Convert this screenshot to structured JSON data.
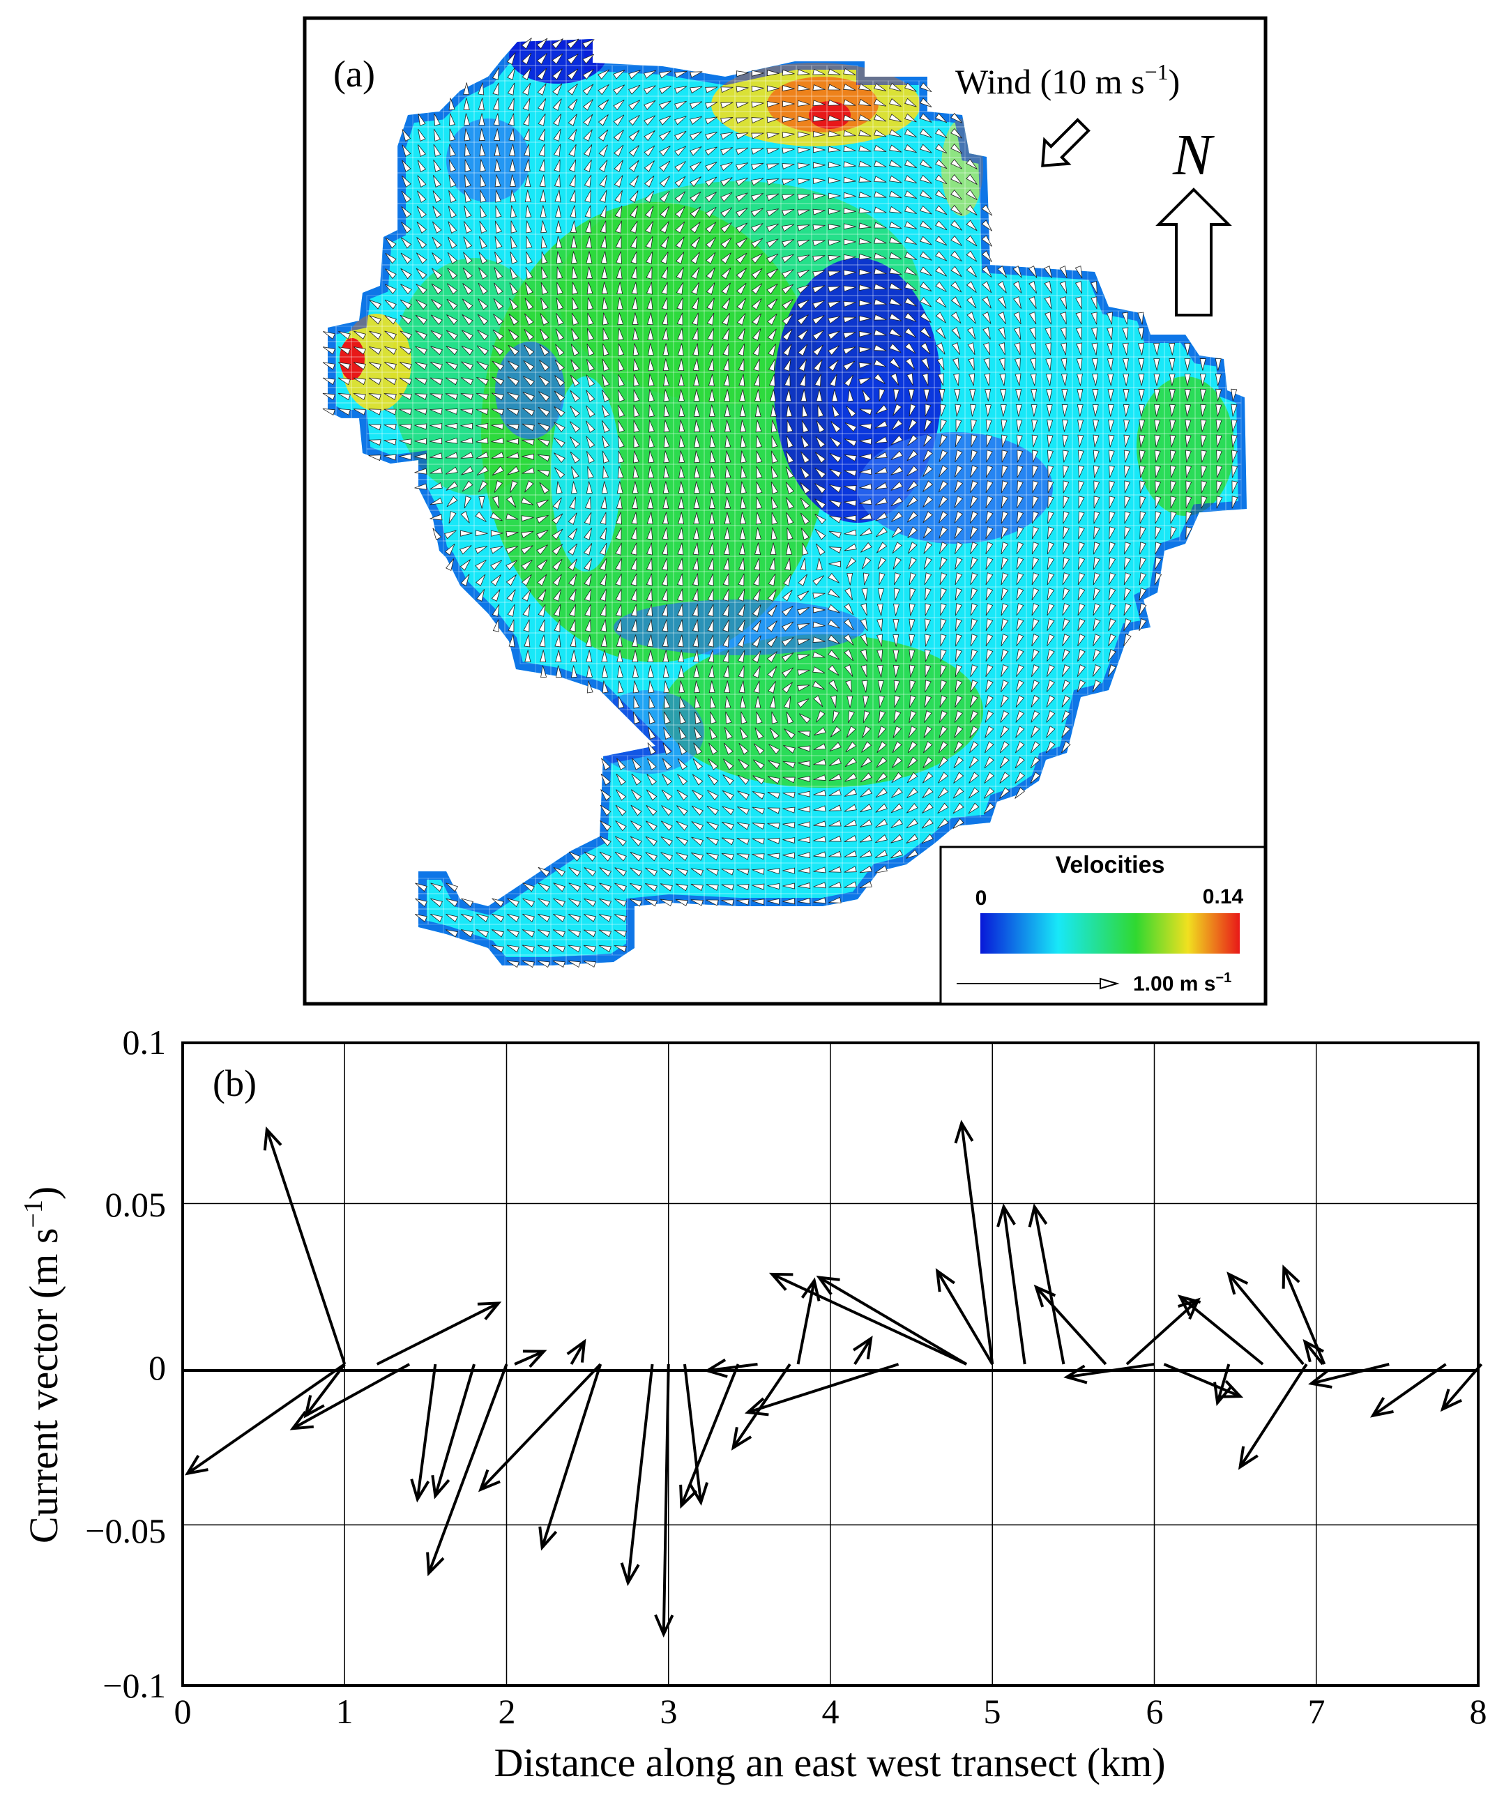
{
  "panel_a": {
    "label": "(a)",
    "wind_label": "Wind (10 m s",
    "wind_sup": "−1",
    "wind_close": ")",
    "north_label": "N",
    "legend": {
      "title": "Velocities",
      "min_label": "0",
      "max_label": "0.14",
      "scale_label": "1.00 m s",
      "scale_sup": "−1"
    },
    "colors": {
      "deep_blue": "#0818d8",
      "blue": "#2a6cf0",
      "cyan": "#18e8f8",
      "green": "#30d830",
      "yellow": "#f0e020",
      "orange": "#f07818",
      "red": "#e81818"
    }
  },
  "panel_b": {
    "label": "(b)",
    "ylabel": "Current vector (m s",
    "ylabel_sup": "−1",
    "ylabel_close": ")",
    "xlabel": "Distance along an east west transect (km)",
    "x_ticks": [
      "0",
      "1",
      "2",
      "3",
      "4",
      "5",
      "6",
      "7",
      "8"
    ],
    "y_ticks": [
      "0.1",
      "0.05",
      "0",
      "−0.05",
      "−0.1"
    ]
  },
  "chart_data": [
    {
      "type": "vector-field-map",
      "title": "(a)",
      "annotations": [
        "Wind (10 m s−1)",
        "N"
      ],
      "wind_direction": "from north-east (arrow pointing south-west)",
      "colorbar": {
        "label": "Velocities",
        "min": 0,
        "max": 0.14,
        "colors": [
          "#0818d8",
          "#18e8f8",
          "#30d830",
          "#f0e020",
          "#e81818"
        ]
      },
      "reference_vector": "1.00 m s−1"
    },
    {
      "type": "quiver",
      "title": "(b)",
      "xlabel": "Distance along an east west transect (km)",
      "ylabel": "Current vector (m s−1)",
      "xlim": [
        0,
        8
      ],
      "ylim": [
        -0.1,
        0.1
      ],
      "x_ticks": [
        0,
        1,
        2,
        3,
        4,
        5,
        6,
        7,
        8
      ],
      "y_ticks": [
        -0.1,
        -0.05,
        0,
        0.05,
        0.1
      ],
      "grid": true,
      "vectors": [
        {
          "x": 1.0,
          "u": -0.48,
          "v": 0.073
        },
        {
          "x": 1.0,
          "u": -0.24,
          "v": -0.016
        },
        {
          "x": 1.0,
          "u": -0.97,
          "v": -0.034
        },
        {
          "x": 1.4,
          "u": -0.72,
          "v": -0.02
        },
        {
          "x": 1.56,
          "u": -0.11,
          "v": -0.042
        },
        {
          "x": 1.2,
          "u": 0.75,
          "v": 0.019
        },
        {
          "x": 1.8,
          "u": -0.24,
          "v": -0.041
        },
        {
          "x": 2.0,
          "u": -0.48,
          "v": -0.065
        },
        {
          "x": 2.05,
          "u": 0.18,
          "v": 0.004
        },
        {
          "x": 2.4,
          "u": 0.08,
          "v": 0.007
        },
        {
          "x": 2.58,
          "u": -0.74,
          "v": -0.039
        },
        {
          "x": 2.58,
          "u": -0.36,
          "v": -0.057
        },
        {
          "x": 2.9,
          "u": -0.15,
          "v": -0.068
        },
        {
          "x": 3.0,
          "u": -0.03,
          "v": -0.084
        },
        {
          "x": 3.1,
          "u": 0.1,
          "v": -0.043
        },
        {
          "x": 3.43,
          "u": -0.35,
          "v": -0.044
        },
        {
          "x": 3.75,
          "u": -0.35,
          "v": -0.026
        },
        {
          "x": 3.8,
          "u": 0.1,
          "v": 0.026
        },
        {
          "x": 3.55,
          "u": -0.31,
          "v": -0.002
        },
        {
          "x": 4.42,
          "u": -0.93,
          "v": -0.015
        },
        {
          "x": 4.15,
          "u": 0.1,
          "v": 0.008
        },
        {
          "x": 4.84,
          "u": -0.91,
          "v": 0.027
        },
        {
          "x": 4.84,
          "u": -1.2,
          "v": 0.028
        },
        {
          "x": 5.0,
          "u": -0.34,
          "v": 0.029
        },
        {
          "x": 5.0,
          "u": -0.19,
          "v": 0.075
        },
        {
          "x": 5.2,
          "u": -0.13,
          "v": 0.049
        },
        {
          "x": 5.44,
          "u": -0.18,
          "v": 0.049
        },
        {
          "x": 5.7,
          "u": -0.43,
          "v": 0.024
        },
        {
          "x": 5.83,
          "u": 0.44,
          "v": 0.02
        },
        {
          "x": 6.0,
          "u": -0.54,
          "v": -0.004
        },
        {
          "x": 6.06,
          "u": 0.47,
          "v": -0.01
        },
        {
          "x": 6.46,
          "u": -0.07,
          "v": -0.012
        },
        {
          "x": 6.67,
          "u": -0.51,
          "v": 0.021
        },
        {
          "x": 6.92,
          "u": -0.46,
          "v": 0.028
        },
        {
          "x": 6.94,
          "u": -0.41,
          "v": -0.032
        },
        {
          "x": 7.05,
          "u": -0.25,
          "v": 0.03
        },
        {
          "x": 7.04,
          "u": -0.11,
          "v": 0.007
        },
        {
          "x": 7.45,
          "u": -0.48,
          "v": -0.006
        },
        {
          "x": 7.8,
          "u": -0.45,
          "v": -0.016
        },
        {
          "x": 8.02,
          "u": -0.24,
          "v": -0.014
        }
      ]
    }
  ]
}
